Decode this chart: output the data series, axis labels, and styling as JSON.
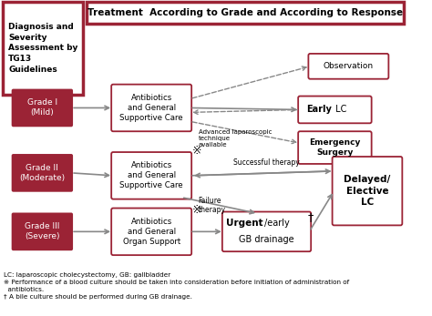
{
  "title": "Treatment  According to Grade and According to Response",
  "left_title": "Diagnosis and\nSeverity\nAssessment by\nTG13\nGuidelines",
  "footnotes": "LC: laparoscopic cholecystectomy, GB: gallbladder\n※ Performance of a blood culture should be taken into consideration before initiation of administration of\n  antibiotics.\n† A bile culture should be performed during GB drainage.",
  "grade_color": "#9B2335",
  "box_edge_color": "#9B2335",
  "arrow_color": "#888888",
  "bg_color": "#ffffff"
}
